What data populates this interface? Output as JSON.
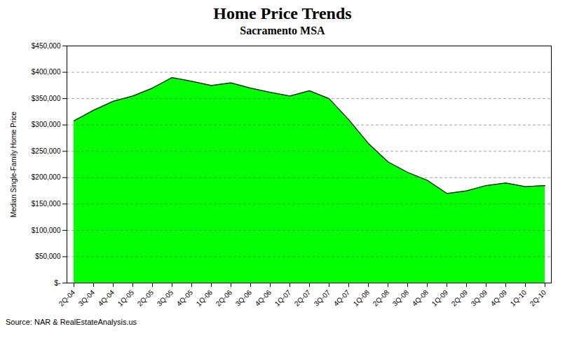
{
  "chart_data": {
    "type": "area",
    "title": "Home Price Trends",
    "subtitle": "Sacramento MSA",
    "ylabel": "Median Single-Family Home Price",
    "source": "Source: NAR & RealEstateAnalysis.us",
    "categories": [
      "2Q-04",
      "3Q-04",
      "4Q-04",
      "1Q-05",
      "2Q-05",
      "3Q-05",
      "4Q-05",
      "1Q-06",
      "2Q-06",
      "3Q-06",
      "4Q-06",
      "1Q-07",
      "2Q-07",
      "3Q-07",
      "4Q-07",
      "1Q-08",
      "2Q-08",
      "3Q-08",
      "4Q-08",
      "1Q-09",
      "2Q-09",
      "3Q-09",
      "4Q-09",
      "1Q-10",
      "2Q-10"
    ],
    "values": [
      308000,
      328000,
      345000,
      355000,
      370000,
      390000,
      383000,
      375000,
      380000,
      370000,
      362000,
      355000,
      365000,
      350000,
      310000,
      265000,
      230000,
      210000,
      195000,
      170000,
      175000,
      185000,
      190000,
      183000,
      185000
    ],
    "color": "#00ff00",
    "ylim": [
      0,
      450000
    ],
    "yticks": [
      {
        "value": 0,
        "label": "$-"
      },
      {
        "value": 50000,
        "label": "$50,000"
      },
      {
        "value": 100000,
        "label": "$100,000"
      },
      {
        "value": 150000,
        "label": "$150,000"
      },
      {
        "value": 200000,
        "label": "$200,000"
      },
      {
        "value": 250000,
        "label": "$250,000"
      },
      {
        "value": 300000,
        "label": "$300,000"
      },
      {
        "value": 350000,
        "label": "$350,000"
      },
      {
        "value": 400000,
        "label": "$400,000"
      },
      {
        "value": 450000,
        "label": "$450,000"
      }
    ],
    "grid": true
  }
}
